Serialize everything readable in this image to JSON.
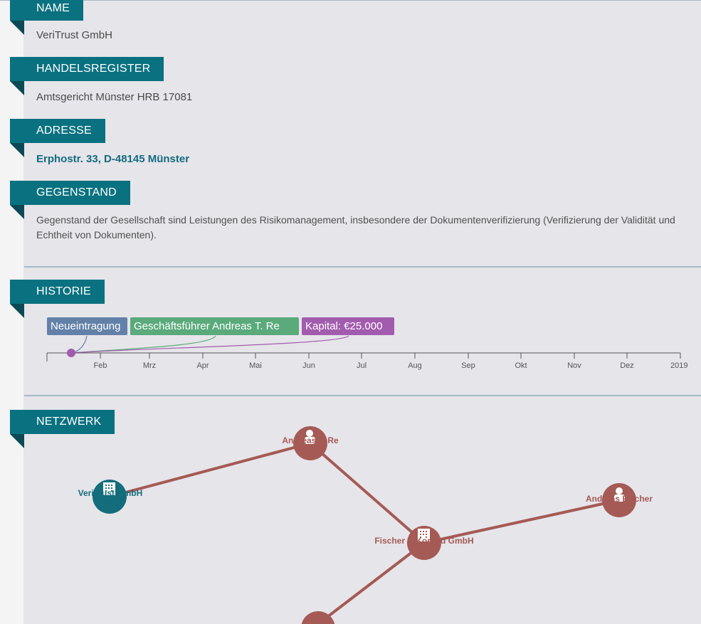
{
  "sections": {
    "name": {
      "title": "NAME",
      "value": "VeriTrust GmbH"
    },
    "register": {
      "title": "HANDELSREGISTER",
      "value": "Amtsgericht Münster HRB 17081"
    },
    "address": {
      "title": "ADRESSE",
      "value": "Erphostr. 33, D-48145 Münster"
    },
    "purpose": {
      "title": "GEGENSTAND",
      "value": "Gegenstand der Gesellschaft sind Leistungen des Risikomanagement, insbesondere der Dokumentenverifizierung (Verifizierung der Validität und Echtheit von Dokumenten)."
    },
    "history": {
      "title": "HISTORIE"
    },
    "network": {
      "title": "NETZWERK"
    }
  },
  "timeline": {
    "events": [
      {
        "label": "Neueintragung",
        "color": "#6381a8"
      },
      {
        "label": "Geschäftsführer Andreas T. Re",
        "color": "#5aaa7c"
      },
      {
        "label": "Kapital: €25.000",
        "color": "#a25cae"
      }
    ],
    "months": [
      "Feb",
      "Mrz",
      "Apr",
      "Mai",
      "Jun",
      "Jul",
      "Aug",
      "Sep",
      "Okt",
      "Nov",
      "Dez",
      "2019"
    ]
  },
  "network": {
    "nodes": [
      {
        "id": "veritrust",
        "label": "VeriTrust GmbH",
        "type": "company",
        "color": "#136d7c"
      },
      {
        "id": "andreas-re",
        "label": "Andreas T. Re",
        "type": "person",
        "color": "#a55a55"
      },
      {
        "id": "fischer-konrad",
        "label": "Fischer & Konrad GmbH",
        "type": "company",
        "color": "#a55a55"
      },
      {
        "id": "andreas-fischer",
        "label": "Andreas Fischer",
        "type": "person",
        "color": "#a55a55"
      },
      {
        "id": "unknown-bottom",
        "label": "",
        "type": "person",
        "color": "#a55a55"
      }
    ],
    "edge_color": "#a55a55"
  }
}
